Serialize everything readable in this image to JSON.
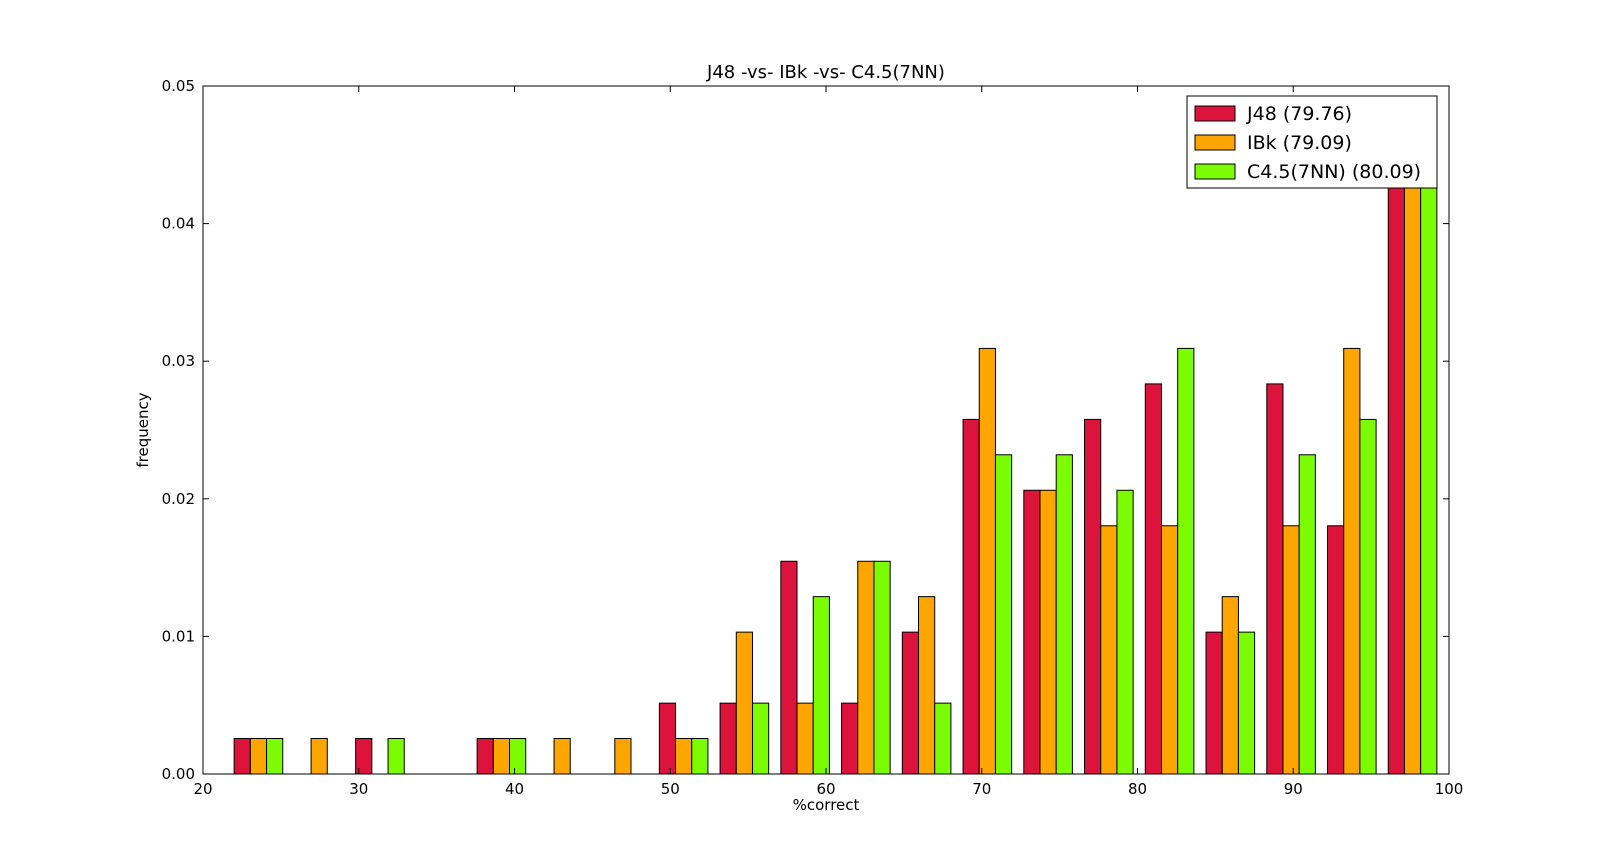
{
  "chart_data": {
    "type": "bar",
    "title": "J48 -vs- IBk -vs- C4.5(7NN)",
    "xlabel": "%correct",
    "ylabel": "frequency",
    "xlim": [
      20,
      100
    ],
    "ylim": [
      0,
      0.05
    ],
    "xticks": [
      20,
      30,
      40,
      50,
      60,
      70,
      80,
      90,
      100
    ],
    "yticks": [
      0.0,
      0.01,
      0.02,
      0.03,
      0.04,
      0.05
    ],
    "xtick_labels": [
      "20",
      "30",
      "40",
      "50",
      "60",
      "70",
      "80",
      "90",
      "100"
    ],
    "ytick_labels": [
      "0.00",
      "0.01",
      "0.02",
      "0.03",
      "0.04",
      "0.05"
    ],
    "bin_edges": [
      22.0,
      25.9,
      29.8,
      33.7,
      37.6,
      41.5,
      45.4,
      49.3,
      53.2,
      57.1,
      61.0,
      64.9,
      68.8,
      72.7,
      76.6,
      80.5,
      84.4,
      88.3,
      92.2,
      96.1,
      100.0
    ],
    "grid": false,
    "legend_position": "top-right",
    "series": [
      {
        "name": "J48 (79.76)",
        "color": "#dc143c",
        "values": [
          0.00258,
          0.0,
          0.00258,
          0.0,
          0.00258,
          0.0,
          0.0,
          0.00515,
          0.00515,
          0.01546,
          0.00515,
          0.01031,
          0.02577,
          0.02062,
          0.02577,
          0.02835,
          0.01031,
          0.02835,
          0.01804,
          0.04381
        ]
      },
      {
        "name": "IBk (79.09)",
        "color": "#ffa500",
        "values": [
          0.00258,
          0.00258,
          0.0,
          0.0,
          0.00258,
          0.00258,
          0.00258,
          0.00258,
          0.01031,
          0.00515,
          0.01546,
          0.01289,
          0.03093,
          0.02062,
          0.01804,
          0.01804,
          0.01289,
          0.01804,
          0.03093,
          0.04381
        ]
      },
      {
        "name": "C4.5(7NN) (80.09)",
        "color": "#7cfc00",
        "values": [
          0.00258,
          0.0,
          0.00258,
          0.0,
          0.00258,
          0.0,
          0.0,
          0.00258,
          0.00515,
          0.01289,
          0.01546,
          0.00515,
          0.0232,
          0.0232,
          0.02062,
          0.03093,
          0.01031,
          0.0232,
          0.02577,
          0.04897
        ]
      }
    ]
  }
}
